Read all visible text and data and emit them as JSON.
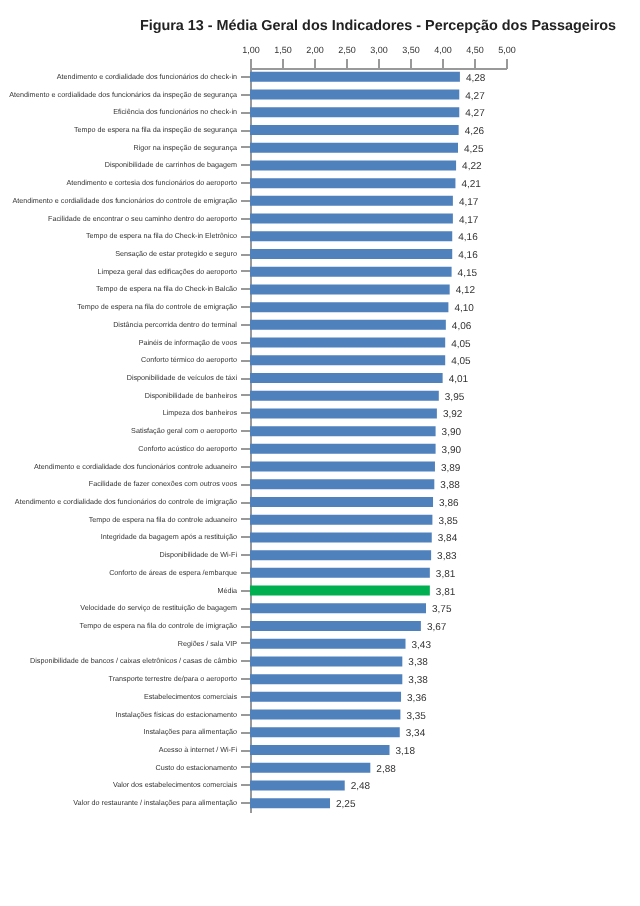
{
  "chart_data": {
    "type": "bar",
    "orientation": "horizontal",
    "title": "Figura 13 - Média Geral dos Indicadores - Percepção dos Passageiros",
    "categories": [
      "Atendimento e cordialidade dos funcionários do check-in",
      "Atendimento e cordialidade dos funcionários da inspeção de segurança",
      "Eficiência dos funcionários no check-in",
      "Tempo de espera na fila da inspeção de segurança",
      "Rigor na inspeção de segurança",
      "Disponibilidade de carrinhos de bagagem",
      "Atendimento e cortesia dos funcionários do aeroporto",
      "Atendimento e cordialidade dos funcionários do controle de emigração",
      "Facilidade de encontrar o seu caminho dentro do aeroporto",
      "Tempo de espera na fila do Check-in Eletrônico",
      "Sensação de estar protegido e seguro",
      "Limpeza geral das edificações do aeroporto",
      "Tempo de espera na fila do Check-in Balcão",
      "Tempo de espera na fila do controle de emigração",
      "Distância percorrida dentro do terminal",
      "Painéis de informação de voos",
      "Conforto térmico do aeroporto",
      "Disponibilidade de veículos de táxi",
      "Disponibilidade de banheiros",
      "Limpeza dos banheiros",
      "Satisfação geral com o aeroporto",
      "Conforto acústico do aeroporto",
      "Atendimento e cordialidade dos funcionários controle aduaneiro",
      "Facilidade de fazer conexões com outros voos",
      "Atendimento e cordialidade dos funcionários do controle de imigração",
      "Tempo de espera na fila do controle aduaneiro",
      "Integridade da bagagem após a restituição",
      "Disponibilidade de Wi-Fi",
      "Conforto de áreas de espera /embarque",
      "Média",
      "Velocidade do serviço de restituição de bagagem",
      "Tempo de espera na fila do controle de imigração",
      "Regiões / sala VIP",
      "Disponibilidade de bancos / caixas eletrônicos / casas de câmbio",
      "Transporte terrestre de/para o aeroporto",
      "Estabelecimentos comerciais",
      "Instalações físicas do estacionamento",
      "Instalações para alimentação",
      "Acesso à internet / Wi-Fi",
      "Custo do estacionamento",
      "Valor dos estabelecimentos comerciais",
      "Valor do restaurante / instalações para alimentação"
    ],
    "values": [
      4.28,
      4.27,
      4.27,
      4.26,
      4.25,
      4.22,
      4.21,
      4.17,
      4.17,
      4.16,
      4.16,
      4.15,
      4.12,
      4.1,
      4.06,
      4.05,
      4.05,
      4.01,
      3.95,
      3.92,
      3.9,
      3.9,
      3.89,
      3.88,
      3.86,
      3.85,
      3.84,
      3.83,
      3.81,
      3.81,
      3.75,
      3.67,
      3.43,
      3.38,
      3.38,
      3.36,
      3.35,
      3.34,
      3.18,
      2.88,
      2.48,
      2.25
    ],
    "value_labels": [
      "4,28",
      "4,27",
      "4,27",
      "4,26",
      "4,25",
      "4,22",
      "4,21",
      "4,17",
      "4,17",
      "4,16",
      "4,16",
      "4,15",
      "4,12",
      "4,10",
      "4,06",
      "4,05",
      "4,05",
      "4,01",
      "3,95",
      "3,92",
      "3,90",
      "3,90",
      "3,89",
      "3,88",
      "3,86",
      "3,85",
      "3,84",
      "3,83",
      "3,81",
      "3,81",
      "3,75",
      "3,67",
      "3,43",
      "3,38",
      "3,38",
      "3,36",
      "3,35",
      "3,34",
      "3,18",
      "2,88",
      "2,48",
      "2,25"
    ],
    "colors": [
      "#4f81bd",
      "#4f81bd",
      "#4f81bd",
      "#4f81bd",
      "#4f81bd",
      "#4f81bd",
      "#4f81bd",
      "#4f81bd",
      "#4f81bd",
      "#4f81bd",
      "#4f81bd",
      "#4f81bd",
      "#4f81bd",
      "#4f81bd",
      "#4f81bd",
      "#4f81bd",
      "#4f81bd",
      "#4f81bd",
      "#4f81bd",
      "#4f81bd",
      "#4f81bd",
      "#4f81bd",
      "#4f81bd",
      "#4f81bd",
      "#4f81bd",
      "#4f81bd",
      "#4f81bd",
      "#4f81bd",
      "#4f81bd",
      "#00b050",
      "#4f81bd",
      "#4f81bd",
      "#4f81bd",
      "#4f81bd",
      "#4f81bd",
      "#4f81bd",
      "#4f81bd",
      "#4f81bd",
      "#4f81bd",
      "#4f81bd",
      "#4f81bd",
      "#4f81bd"
    ],
    "xlim": [
      1.0,
      5.0
    ],
    "xticks": [
      {
        "value": 1.0,
        "label": "1,00"
      },
      {
        "value": 1.5,
        "label": "1,50"
      },
      {
        "value": 2.0,
        "label": "2,00"
      },
      {
        "value": 2.5,
        "label": "2,50"
      },
      {
        "value": 3.0,
        "label": "3,00"
      },
      {
        "value": 3.5,
        "label": "3,50"
      },
      {
        "value": 4.0,
        "label": "4,00"
      },
      {
        "value": 4.5,
        "label": "4,50"
      },
      {
        "value": 5.0,
        "label": "5,00"
      }
    ],
    "grid": false
  }
}
